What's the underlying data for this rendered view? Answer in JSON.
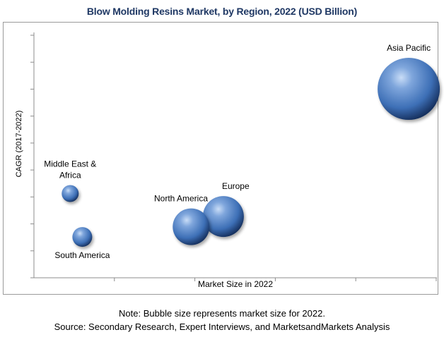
{
  "chart_data": {
    "type": "bubble",
    "title": "Blow Molding Resins Market, by Region, 2022 (USD Billion)",
    "xlabel": "Market Size in 2022",
    "ylabel": "CAGR (2017-2022)",
    "x_ticks_count": 5,
    "y_ticks_count": 10,
    "bubble_color": "#3d6fb6",
    "series": [
      {
        "name": "Asia Pacific",
        "x": 4.65,
        "y": 7.4,
        "size": 44,
        "label_position": "above"
      },
      {
        "name": "Europe",
        "x": 2.35,
        "y": 2.4,
        "size": 29,
        "label_position": "above-right"
      },
      {
        "name": "North America",
        "x": 1.95,
        "y": 2.0,
        "size": 26,
        "label_position": "above-left"
      },
      {
        "name": "Middle East & Africa",
        "label_lines": [
          "Middle East &",
          "Africa"
        ],
        "x": 0.45,
        "y": 3.3,
        "size": 12,
        "label_position": "above"
      },
      {
        "name": "South America",
        "x": 0.6,
        "y": 1.6,
        "size": 14,
        "label_position": "below"
      }
    ]
  },
  "notes": {
    "note": "Note: Bubble size represents market size for 2022.",
    "source": "Source: Secondary Research, Expert Interviews, and MarketsandMarkets Analysis"
  }
}
